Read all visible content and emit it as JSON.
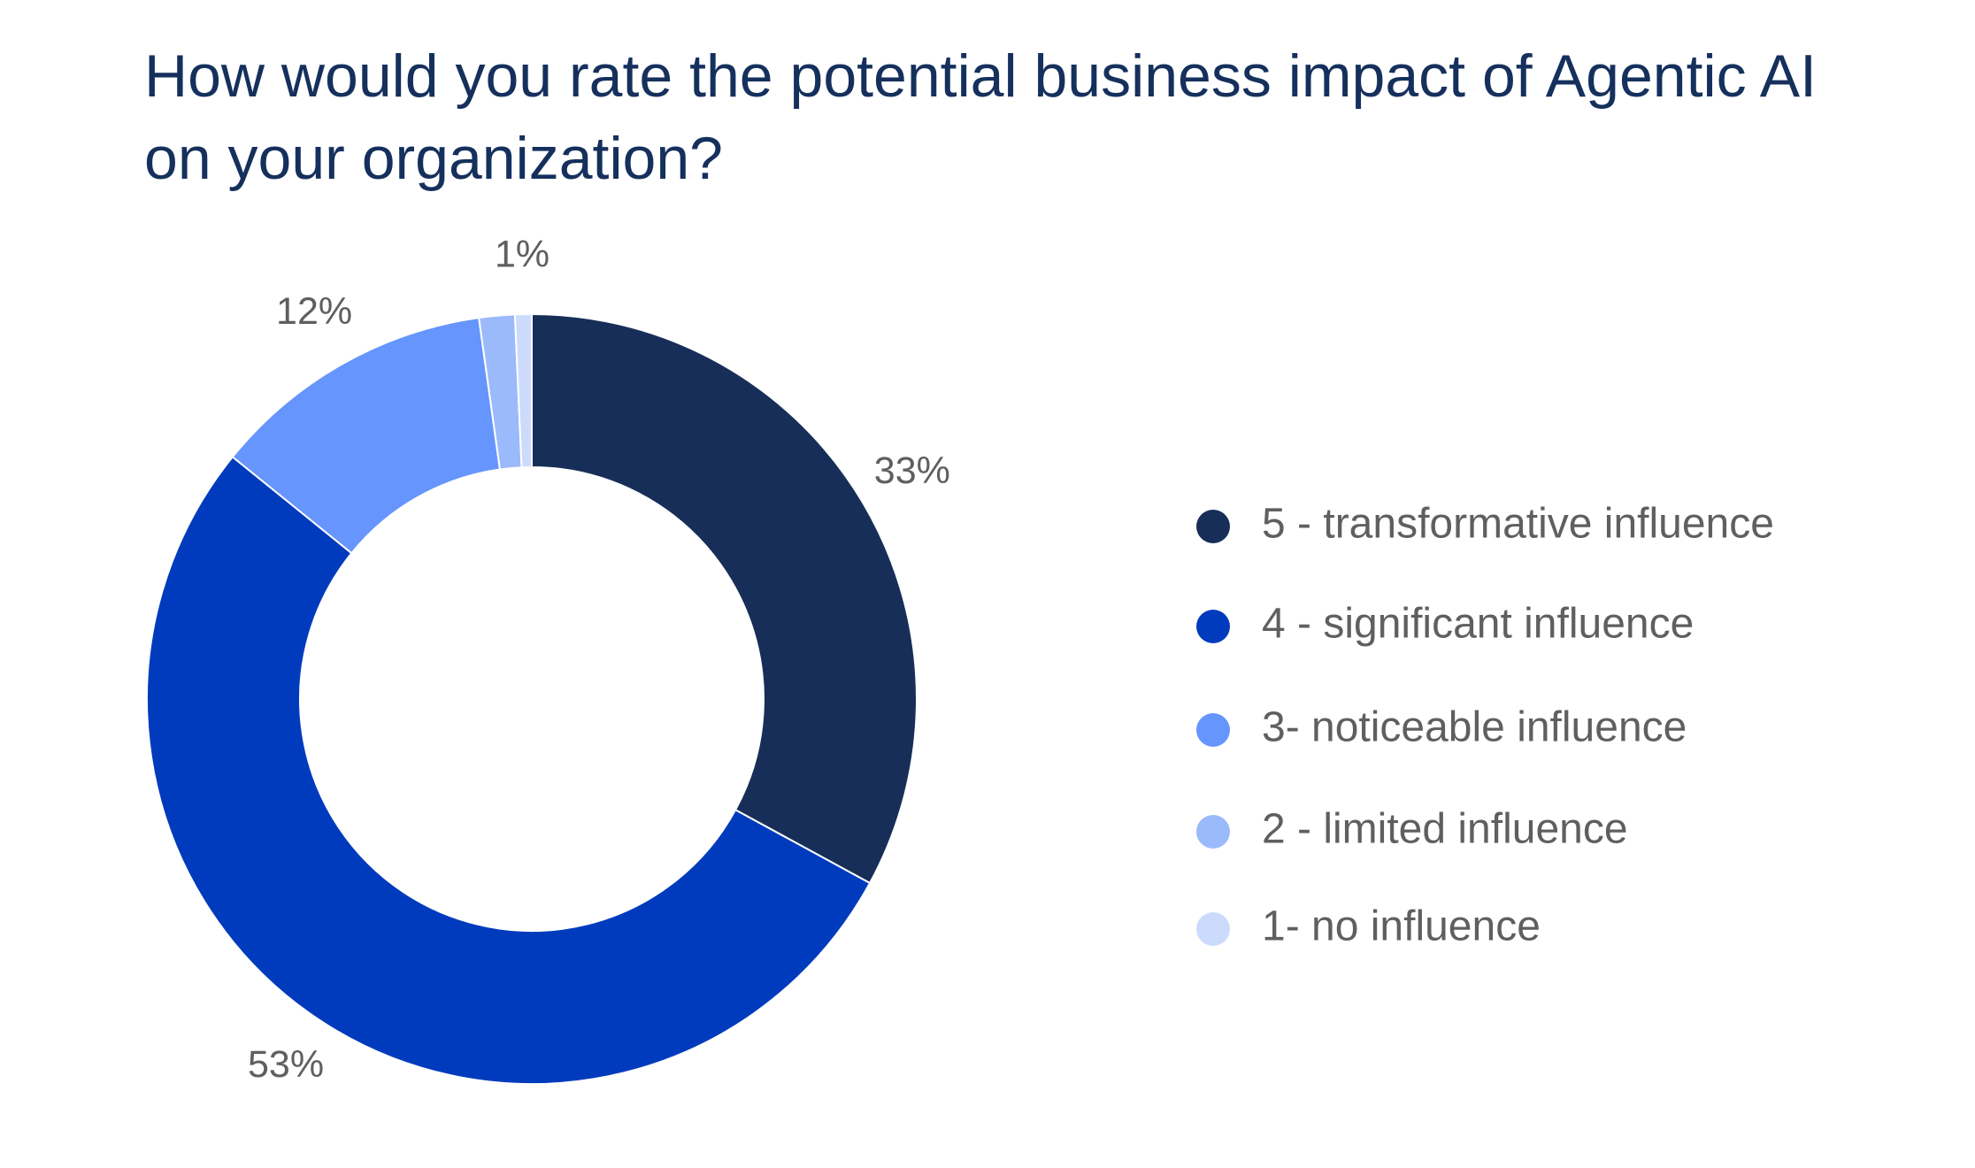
{
  "chart_data": {
    "type": "pie",
    "variant": "donut",
    "title": "How would you rate the potential business impact of Agentic AI on your organization?",
    "categories": [
      "5 - transformative influence",
      "4 - significant influence",
      "3- noticeable influence",
      "2 - limited influence",
      "1- no influence"
    ],
    "values": [
      33,
      53,
      12,
      1.5,
      0.7
    ],
    "value_labels": [
      "33%",
      "53%",
      "12%",
      "",
      "1%"
    ],
    "colors": [
      "#172e58",
      "#003bbd",
      "#6695fd",
      "#9bbafc",
      "#ccdafc"
    ],
    "legend_position": "right"
  }
}
